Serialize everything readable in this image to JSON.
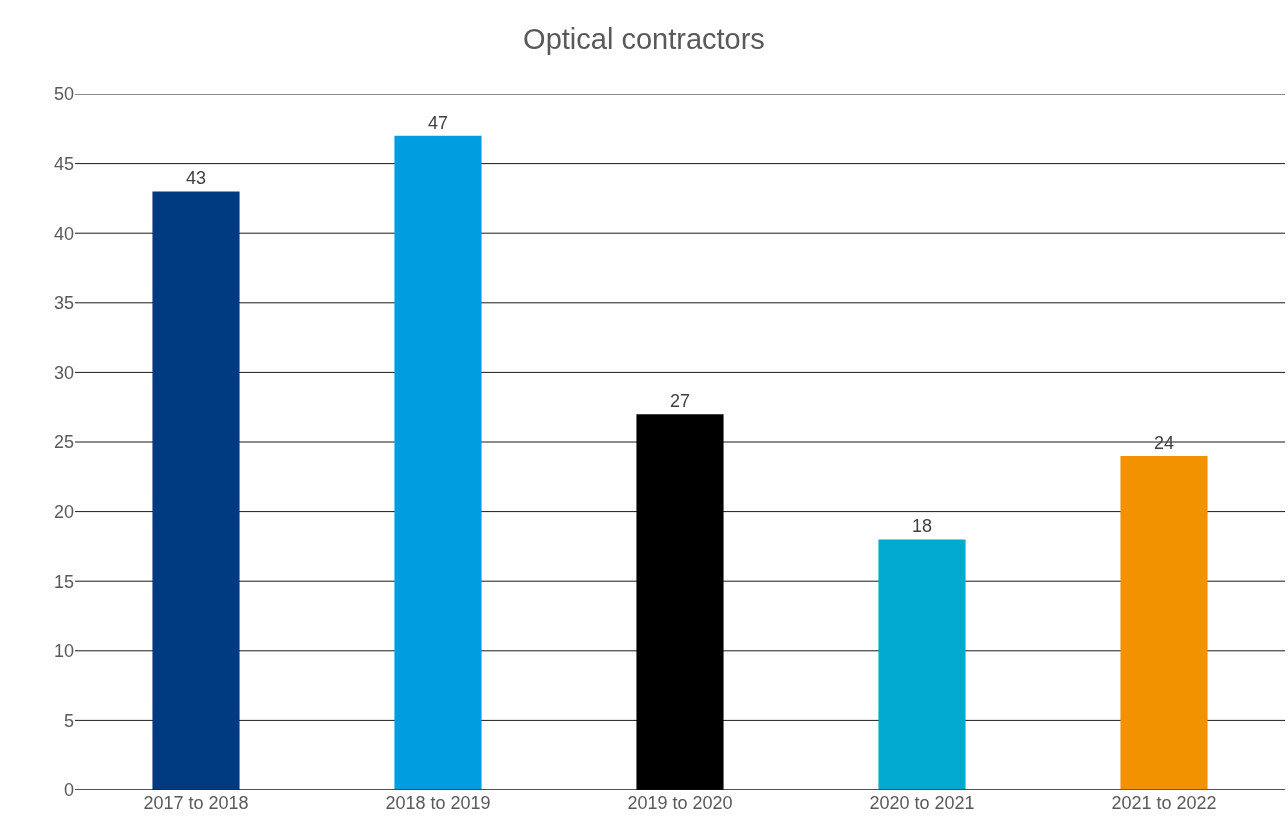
{
  "chart_data": {
    "type": "bar",
    "title": "Optical contractors",
    "categories": [
      "2017 to 2018",
      "2018 to 2019",
      "2019 to 2020",
      "2020 to 2021",
      "2021 to 2022"
    ],
    "values": [
      43,
      47,
      27,
      18,
      24
    ],
    "colors": [
      "#003a80",
      "#009ee0",
      "#000000",
      "#00a9ce",
      "#f39200"
    ],
    "ylim": [
      0,
      50
    ],
    "yticks": [
      0,
      5,
      10,
      15,
      20,
      25,
      30,
      35,
      40,
      45,
      50
    ],
    "grid": "y",
    "data_labels": true
  }
}
